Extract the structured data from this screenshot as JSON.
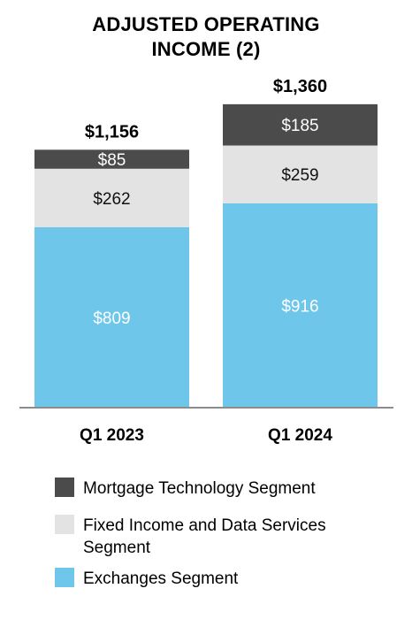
{
  "chart_data": {
    "type": "bar",
    "stacked": true,
    "title_lines": [
      "ADJUSTED OPERATING",
      "INCOME (2)"
    ],
    "categories": [
      "Q1 2023",
      "Q1 2024"
    ],
    "totals": [
      "$1,156",
      "$1,360"
    ],
    "series": [
      {
        "name": "Exchanges Segment",
        "values": [
          809,
          916
        ],
        "labels": [
          "$809",
          "$916"
        ],
        "color": "#6ec6ea",
        "label_color": "#ffffff"
      },
      {
        "name": "Fixed Income and Data Services\nSegment",
        "values": [
          262,
          259
        ],
        "labels": [
          "$262",
          "$259"
        ],
        "color": "#e3e3e3",
        "label_color": "#111111"
      },
      {
        "name": "Mortgage Technology Segment",
        "values": [
          85,
          185
        ],
        "labels": [
          "$85",
          "$185"
        ],
        "color": "#4b4b4b",
        "label_color": "#ffffff"
      }
    ],
    "ylim": [
      0,
      1500
    ],
    "grid": false,
    "legend_position": "bottom"
  },
  "legend": [
    {
      "label": "Mortgage Technology Segment",
      "color": "#4b4b4b"
    },
    {
      "label": "Fixed Income and Data Services\n Segment",
      "color": "#e3e3e3"
    },
    {
      "label": "Exchanges Segment",
      "color": "#6ec6ea"
    }
  ]
}
